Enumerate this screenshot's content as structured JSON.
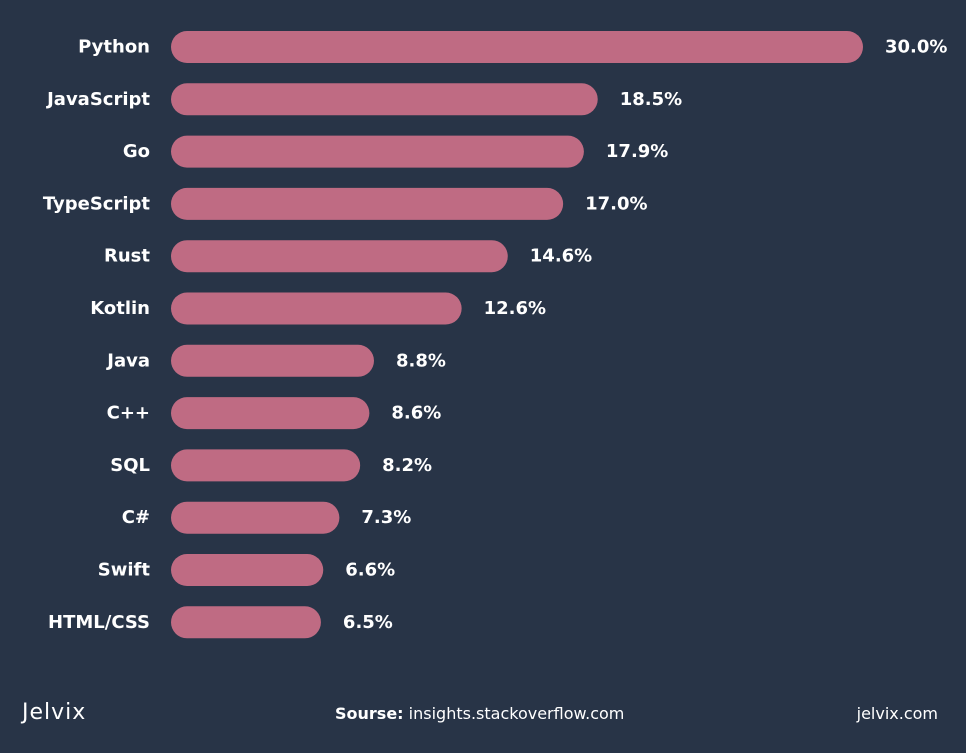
{
  "chart_data": {
    "type": "bar",
    "orientation": "horizontal",
    "categories": [
      "Python",
      "JavaScript",
      "Go",
      "TypeScript",
      "Rust",
      "Kotlin",
      "Java",
      "C++",
      "SQL",
      "C#",
      "Swift",
      "HTML/CSS"
    ],
    "values": [
      30.0,
      18.5,
      17.9,
      17.0,
      14.6,
      12.6,
      8.8,
      8.6,
      8.2,
      7.3,
      6.6,
      6.5
    ],
    "value_labels": [
      "30.0%",
      "18.5%",
      "17.9%",
      "17.0%",
      "14.6%",
      "12.6%",
      "8.8%",
      "8.6%",
      "8.2%",
      "7.3%",
      "6.6%",
      "6.5%"
    ],
    "xlim": [
      0,
      30
    ],
    "grid": false,
    "bar_color": "#bf6b83",
    "background_color": "#283447"
  },
  "footer": {
    "logo": "Jelvix",
    "source_label": "Sourse:",
    "source_value": "insights.stackoverflow.com",
    "site": "jelvix.com"
  }
}
